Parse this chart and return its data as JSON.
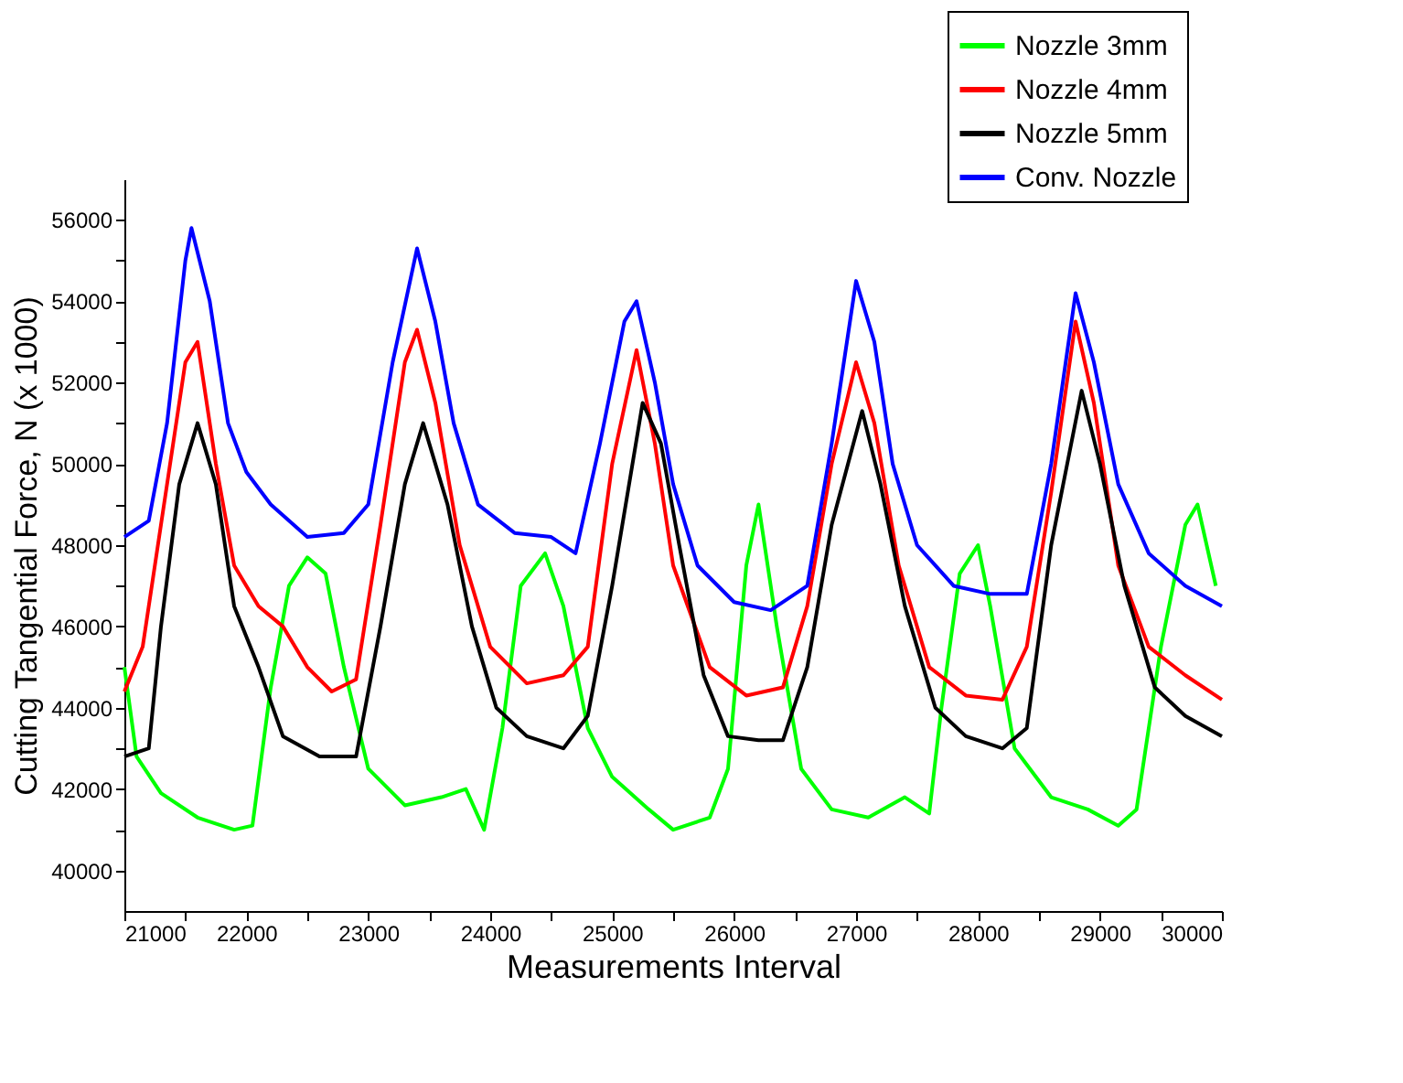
{
  "chart_data": {
    "type": "line",
    "xlabel": "Measurements Interval",
    "ylabel": "Cutting Tangential Force, N (x 1000)",
    "xlim": [
      21000,
      30000
    ],
    "ylim": [
      39000,
      57000
    ],
    "xticks": [
      21000,
      {
        "value": 21500,
        "label": null
      },
      22000,
      {
        "value": 22500,
        "label": null
      },
      23000,
      {
        "value": 23500,
        "label": null
      },
      24000,
      {
        "value": 24500,
        "label": null
      },
      25000,
      {
        "value": 25500,
        "label": null
      },
      26000,
      {
        "value": 26500,
        "label": null
      },
      27000,
      {
        "value": 27500,
        "label": null
      },
      28000,
      {
        "value": 28500,
        "label": null
      },
      29000,
      {
        "value": 29500,
        "label": null
      },
      30000
    ],
    "yticks": [
      40000,
      {
        "value": 41000,
        "label": null
      },
      42000,
      {
        "value": 43000,
        "label": null
      },
      44000,
      {
        "value": 45000,
        "label": null
      },
      46000,
      {
        "value": 47000,
        "label": null
      },
      48000,
      {
        "value": 49000,
        "label": null
      },
      50000,
      {
        "value": 51000,
        "label": null
      },
      52000,
      {
        "value": 53000,
        "label": null
      },
      54000,
      {
        "value": 55000,
        "label": null
      },
      56000
    ],
    "grid": false,
    "legend": "top right",
    "marker": "none",
    "line_style": "solid",
    "series": [
      {
        "name": "Nozzle 3mm",
        "color": "#00ff00",
        "x": [
          21000,
          21100,
          21300,
          21600,
          21900,
          22050,
          22200,
          22350,
          22500,
          22650,
          22800,
          23000,
          23300,
          23600,
          23800,
          23950,
          24100,
          24250,
          24450,
          24600,
          24800,
          25000,
          25300,
          25500,
          25800,
          25950,
          26100,
          26200,
          26350,
          26550,
          26800,
          27100,
          27400,
          27600,
          27700,
          27850,
          28000,
          28100,
          28300,
          28600,
          28900,
          29150,
          29300,
          29500,
          29700,
          29800,
          29950
        ],
        "values": [
          45000,
          42800,
          41900,
          41300,
          41000,
          41100,
          44500,
          47000,
          47700,
          47300,
          45000,
          42500,
          41600,
          41800,
          42000,
          41000,
          43500,
          47000,
          47800,
          46500,
          43500,
          42300,
          41500,
          41000,
          41300,
          42500,
          47500,
          49000,
          46000,
          42500,
          41500,
          41300,
          41800,
          41400,
          44000,
          47300,
          48000,
          46500,
          43000,
          41800,
          41500,
          41100,
          41500,
          45500,
          48500,
          49000,
          47000
        ]
      },
      {
        "name": "Nozzle 4mm",
        "color": "#ff0000",
        "x": [
          21000,
          21150,
          21300,
          21500,
          21600,
          21750,
          21900,
          22100,
          22300,
          22500,
          22700,
          22900,
          23100,
          23300,
          23400,
          23550,
          23750,
          24000,
          24300,
          24600,
          24800,
          25000,
          25200,
          25350,
          25500,
          25800,
          26100,
          26400,
          26600,
          26800,
          27000,
          27150,
          27350,
          27600,
          27900,
          28200,
          28400,
          28600,
          28800,
          28950,
          29150,
          29400,
          29700,
          30000
        ],
        "values": [
          44400,
          45500,
          48500,
          52500,
          53000,
          50000,
          47500,
          46500,
          46000,
          45000,
          44400,
          44700,
          48500,
          52500,
          53300,
          51500,
          48000,
          45500,
          44600,
          44800,
          45500,
          50000,
          52800,
          50500,
          47500,
          45000,
          44300,
          44500,
          46500,
          50000,
          52500,
          51000,
          47500,
          45000,
          44300,
          44200,
          45500,
          49300,
          53500,
          51500,
          47500,
          45500,
          44800,
          44200
        ]
      },
      {
        "name": "Nozzle 5mm",
        "color": "#000000",
        "x": [
          21000,
          21200,
          21300,
          21450,
          21600,
          21750,
          21900,
          22100,
          22300,
          22600,
          22900,
          23100,
          23300,
          23450,
          23650,
          23850,
          24050,
          24300,
          24600,
          24800,
          25000,
          25250,
          25400,
          25550,
          25750,
          25950,
          26200,
          26400,
          26600,
          26800,
          27050,
          27200,
          27400,
          27650,
          27900,
          28200,
          28400,
          28600,
          28850,
          29000,
          29200,
          29450,
          29700,
          30000
        ],
        "values": [
          42800,
          43000,
          46000,
          49500,
          51000,
          49500,
          46500,
          45000,
          43300,
          42800,
          42800,
          46000,
          49500,
          51000,
          49000,
          46000,
          44000,
          43300,
          43000,
          43800,
          47000,
          51500,
          50500,
          48000,
          44800,
          43300,
          43200,
          43200,
          45000,
          48500,
          51300,
          49500,
          46500,
          44000,
          43300,
          43000,
          43500,
          48000,
          51800,
          50000,
          47000,
          44500,
          43800,
          43300
        ]
      },
      {
        "name": "Conv. Nozzle",
        "color": "#0000ff",
        "x": [
          21000,
          21200,
          21350,
          21500,
          21550,
          21700,
          21850,
          22000,
          22200,
          22500,
          22800,
          23000,
          23200,
          23400,
          23550,
          23700,
          23900,
          24200,
          24500,
          24700,
          24900,
          25100,
          25200,
          25350,
          25500,
          25700,
          26000,
          26300,
          26600,
          26800,
          27000,
          27150,
          27300,
          27500,
          27800,
          28100,
          28400,
          28600,
          28800,
          28950,
          29150,
          29400,
          29700,
          30000
        ],
        "values": [
          48200,
          48600,
          51000,
          55000,
          55800,
          54000,
          51000,
          49800,
          49000,
          48200,
          48300,
          49000,
          52500,
          55300,
          53500,
          51000,
          49000,
          48300,
          48200,
          47800,
          50500,
          53500,
          54000,
          52000,
          49500,
          47500,
          46600,
          46400,
          47000,
          50500,
          54500,
          53000,
          50000,
          48000,
          47000,
          46800,
          46800,
          50000,
          54200,
          52500,
          49500,
          47800,
          47000,
          46500
        ]
      }
    ]
  }
}
